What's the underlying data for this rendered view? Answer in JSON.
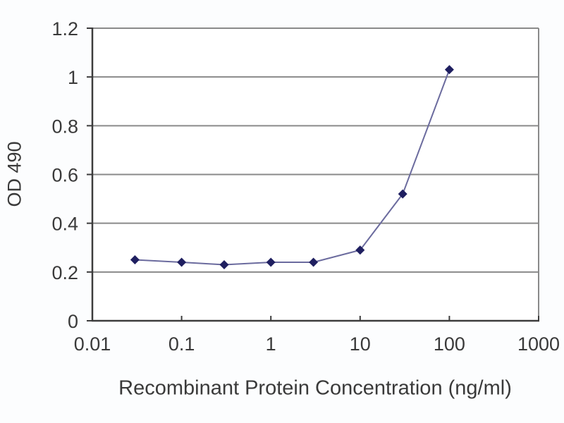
{
  "chart_data": {
    "type": "line",
    "title": "",
    "xlabel": "Recombinant Protein Concentration (ng/ml)",
    "ylabel": "OD 490",
    "x_scale": "log",
    "xlim": [
      0.01,
      1000
    ],
    "ylim": [
      0,
      1.2
    ],
    "x_ticks": [
      0.01,
      0.1,
      1,
      10,
      100,
      1000
    ],
    "x_tick_labels": [
      "0.01",
      "0.1",
      "1",
      "10",
      "100",
      "1000"
    ],
    "y_ticks": [
      0,
      0.2,
      0.4,
      0.6,
      0.8,
      1,
      1.2
    ],
    "y_tick_labels": [
      "0",
      "0.2",
      "0.4",
      "0.6",
      "0.8",
      "1",
      "1.2"
    ],
    "grid": "horizontal",
    "legend": "none",
    "series": [
      {
        "name": "OD 490",
        "marker": "diamond",
        "x": [
          0.03,
          0.1,
          0.3,
          1,
          3,
          10,
          30,
          100
        ],
        "y": [
          0.25,
          0.24,
          0.23,
          0.24,
          0.24,
          0.29,
          0.52,
          1.03
        ]
      }
    ],
    "colors": {
      "marker": "#1f1f60",
      "line": "#6b6b9e",
      "gridline": "#8a8a8a",
      "axis": "#3c3c3c",
      "text": "#3a3a3a",
      "plot_background": "#ffffff"
    }
  }
}
